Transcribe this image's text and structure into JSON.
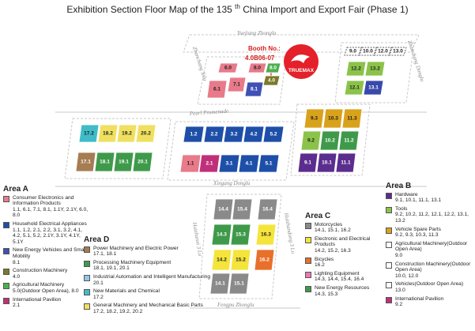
{
  "header": {
    "title_start": "Exhibition Section Floor Map of the 135",
    "title_sup": "th",
    "title_end": "China Import and Export Fair  (Phase 1)"
  },
  "booth": {
    "label": "Booth No.:",
    "number": "4.0B06-07",
    "brand": "TRUEMAX"
  },
  "roads": [
    "Yuejiang Zhonglu",
    "Pearl Promenade",
    "Xingang Donglu",
    "Fengpu Zhonglu",
    "Zhanchang Xilu",
    "Zhanchang Donglu",
    "Huizhanxi 3 Lu",
    "Huizhandong 3 Lu"
  ],
  "halls": [
    {
      "label": "6.0",
      "color": "#e87a8a"
    },
    {
      "label": "8.0",
      "color": "#e87a8a"
    },
    {
      "label": "8.0",
      "color": "#4caf50"
    },
    {
      "label": "6.1",
      "color": "#e87a8a"
    },
    {
      "label": "7.1",
      "color": "#e87a8a"
    },
    {
      "label": "8.1",
      "color": "#3f51b5"
    },
    {
      "label": "4.0",
      "color": "#7a7a2a"
    },
    {
      "label": "9.0",
      "color": "#ffffff"
    },
    {
      "label": "10.0",
      "color": "#ffffff"
    },
    {
      "label": "12.0",
      "color": "#ffffff"
    },
    {
      "label": "13.0",
      "color": "#ffffff"
    },
    {
      "label": "12.2",
      "color": "#8bc34a"
    },
    {
      "label": "13.2",
      "color": "#8bc34a"
    },
    {
      "label": "12.1",
      "color": "#8bc34a"
    },
    {
      "label": "13.1",
      "color": "#3949ab"
    },
    {
      "label": "1.2",
      "color": "#1e4fa8"
    },
    {
      "label": "2.2",
      "color": "#1e4fa8"
    },
    {
      "label": "3.2",
      "color": "#1e4fa8"
    },
    {
      "label": "4.2",
      "color": "#1e4fa8"
    },
    {
      "label": "5.2",
      "color": "#1e4fa8"
    },
    {
      "label": "1.1",
      "color": "#e87a8a"
    },
    {
      "label": "2.1",
      "color": "#c0307a"
    },
    {
      "label": "3.1",
      "color": "#1e4fa8"
    },
    {
      "label": "4.1",
      "color": "#1e4fa8"
    },
    {
      "label": "5.1",
      "color": "#1e4fa8"
    },
    {
      "label": "17.2",
      "color": "#3fbcc8"
    },
    {
      "label": "18.2",
      "color": "#f0e060"
    },
    {
      "label": "19.2",
      "color": "#f0e060"
    },
    {
      "label": "20.2",
      "color": "#f0e060"
    },
    {
      "label": "17.1",
      "color": "#a67c52"
    },
    {
      "label": "18.1",
      "color": "#3e9a4a"
    },
    {
      "label": "19.1",
      "color": "#3e9a4a"
    },
    {
      "label": "20.1",
      "color": "#3e9a4a"
    },
    {
      "label": "9.3",
      "color": "#d9a21b"
    },
    {
      "label": "10.3",
      "color": "#d9a21b"
    },
    {
      "label": "11.3",
      "color": "#d9a21b"
    },
    {
      "label": "9.2",
      "color": "#8bc34a"
    },
    {
      "label": "10.2",
      "color": "#3e9a4a"
    },
    {
      "label": "11.2",
      "color": "#3e9a4a"
    },
    {
      "label": "9.1",
      "color": "#5b2d8e"
    },
    {
      "label": "10.1",
      "color": "#5b2d8e"
    },
    {
      "label": "11.1",
      "color": "#5b2d8e"
    },
    {
      "label": "14.4",
      "color": "#8a8a8a"
    },
    {
      "label": "15.4",
      "color": "#8a8a8a"
    },
    {
      "label": "16.4",
      "color": "#8a8a8a"
    },
    {
      "label": "14.3",
      "color": "#3e9a4a"
    },
    {
      "label": "15.3",
      "color": "#3e9a4a"
    },
    {
      "label": "16.3",
      "color": "#f5e43a"
    },
    {
      "label": "14.2",
      "color": "#f5e43a"
    },
    {
      "label": "15.2",
      "color": "#f5e43a"
    },
    {
      "label": "16.2",
      "color": "#e8702a"
    },
    {
      "label": "14.1",
      "color": "#8a8a8a"
    },
    {
      "label": "15.1",
      "color": "#8a8a8a"
    }
  ],
  "areas": [
    {
      "title": "Area A",
      "items": [
        {
          "name": "Consumer Electronics and Information Products",
          "halls": "1.1, 6.1, 7.1, 8.1, 1.1Y, 2.1Y, 6.0, 8.0",
          "color": "#e87a8a"
        },
        {
          "name": "Household Electrical Appliances",
          "halls": "1.1, 1.2, 2.1, 2.2, 3.1, 3.2, 4.1, 4.2, 5.1, 5.2, 2.1Y, 3.1Y, 4.1Y, 5.1Y",
          "color": "#1e4fa8"
        },
        {
          "name": "New Energy Vehicles and Smart Mobility",
          "halls": "8.1",
          "color": "#3f51b5"
        },
        {
          "name": "Construction Machinery",
          "halls": "4.0",
          "color": "#7a7a2a"
        },
        {
          "name": "Agricultural Machinery",
          "halls": "5.0(Outdoor Open Area), 8.0",
          "color": "#4caf50"
        },
        {
          "name": "International Pavilion",
          "halls": "2.1",
          "color": "#c0307a"
        }
      ]
    },
    {
      "title": "Area D",
      "items": [
        {
          "name": "Power Machinery and Electric Power",
          "halls": "17.1, 18.1",
          "color": "#a67c52"
        },
        {
          "name": "Processing Machinery Equipment",
          "halls": "18.1, 19.1, 20.1",
          "color": "#3e9a4a"
        },
        {
          "name": "Industrial Automation and Intelligent Manufacturing",
          "halls": "20.1",
          "color": "#8ec9e8"
        },
        {
          "name": "New Materials and Chemical",
          "halls": "17.2",
          "color": "#3fbcc8"
        },
        {
          "name": "General Machinery and Mechanical Basic Parts",
          "halls": "17.2, 18.2, 19.2, 20.2",
          "color": "#f0e060"
        }
      ]
    },
    {
      "title": "Area C",
      "items": [
        {
          "name": "Motorcycles",
          "halls": "14.1, 15.1, 16.2",
          "color": "#8a8a8a"
        },
        {
          "name": "Electronic and Electrical Products",
          "halls": "14.2, 15.2, 16.3",
          "color": "#f5e43a"
        },
        {
          "name": "Bicycles",
          "halls": "16.2",
          "color": "#e8702a"
        },
        {
          "name": "Lighting Equipment",
          "halls": "14.3, 14.4, 15.4, 16.4",
          "color": "#e87ab0"
        },
        {
          "name": "New Energy Resources",
          "halls": "14.3, 15.3",
          "color": "#3e9a4a"
        }
      ]
    },
    {
      "title": "Area B",
      "items": [
        {
          "name": "Hardware",
          "halls": "9.1, 10.1, 11.1, 13.1",
          "color": "#5b2d8e"
        },
        {
          "name": "Tools",
          "halls": "9.2, 10.2, 11.2, 12.1, 12.2, 13.1, 13.2",
          "color": "#8bc34a"
        },
        {
          "name": "Vehicle Spare Parts",
          "halls": "9.2, 9.3, 10.3, 11.3",
          "color": "#d9a21b"
        },
        {
          "name": "Agricultural Machinery(Outdoor Open Area)",
          "halls": "9.0",
          "color": "#ffffff"
        },
        {
          "name": "Construction Machinery(Outdoor Open Area)",
          "halls": "10.0, 12.0",
          "color": "#ffffff"
        },
        {
          "name": "Vehicles(Outdoor Open Area)",
          "halls": "13.0",
          "color": "#ffffff"
        },
        {
          "name": "International Pavilion",
          "halls": "9.2",
          "color": "#c0307a"
        }
      ]
    }
  ]
}
